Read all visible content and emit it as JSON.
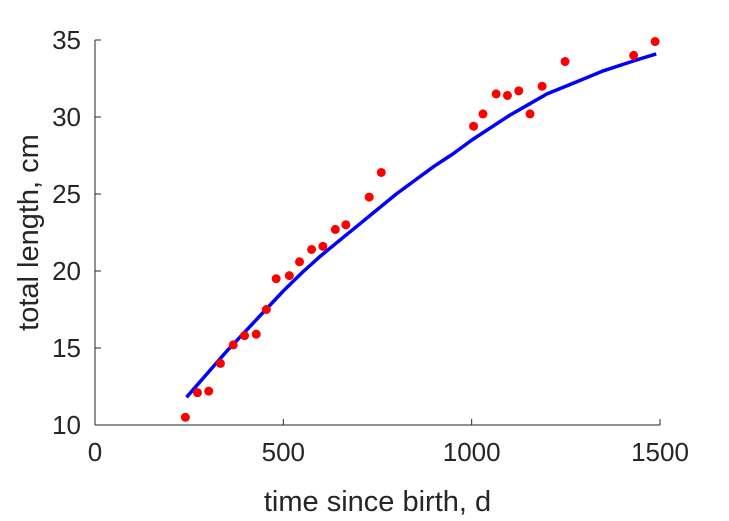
{
  "chart_data": {
    "type": "scatter",
    "title": "",
    "xlabel": "time since birth, d",
    "ylabel": "total length, cm",
    "xlim": [
      0,
      1500
    ],
    "ylim": [
      10,
      35
    ],
    "xticks": [
      0,
      500,
      1000,
      1500
    ],
    "yticks": [
      10,
      15,
      20,
      25,
      30,
      35
    ],
    "grid": false,
    "legend": "none",
    "colors": {
      "points": "#ff0000",
      "fit_line": "#0000ff",
      "axes": "#262626"
    },
    "series": [
      {
        "kind": "scatter",
        "x": [
          240,
          272,
          302,
          333,
          367,
          397,
          428,
          455,
          481,
          516,
          543,
          575,
          605,
          638,
          666,
          728,
          760,
          1005,
          1030,
          1065,
          1095,
          1125,
          1155,
          1187,
          1248,
          1430,
          1487
        ],
        "y": [
          10.5,
          12.1,
          12.2,
          14.0,
          15.2,
          15.8,
          15.9,
          17.5,
          19.5,
          19.7,
          20.6,
          21.4,
          21.6,
          22.7,
          23.0,
          24.8,
          26.4,
          29.4,
          30.2,
          31.5,
          31.4,
          31.7,
          30.2,
          32.0,
          33.6,
          34.0,
          34.9
        ]
      },
      {
        "kind": "line",
        "x": [
          243,
          300,
          350,
          400,
          450,
          500,
          550,
          600,
          650,
          700,
          750,
          800,
          850,
          900,
          950,
          1000,
          1050,
          1100,
          1150,
          1200,
          1250,
          1300,
          1350,
          1400,
          1450,
          1490
        ],
        "y": [
          11.8,
          13.4,
          14.8,
          16.1,
          17.4,
          18.7,
          19.9,
          21.0,
          22.0,
          23.0,
          24.0,
          25.0,
          25.9,
          26.8,
          27.6,
          28.5,
          29.3,
          30.1,
          30.8,
          31.5,
          32.0,
          32.5,
          33.0,
          33.4,
          33.8,
          34.1
        ]
      }
    ]
  }
}
